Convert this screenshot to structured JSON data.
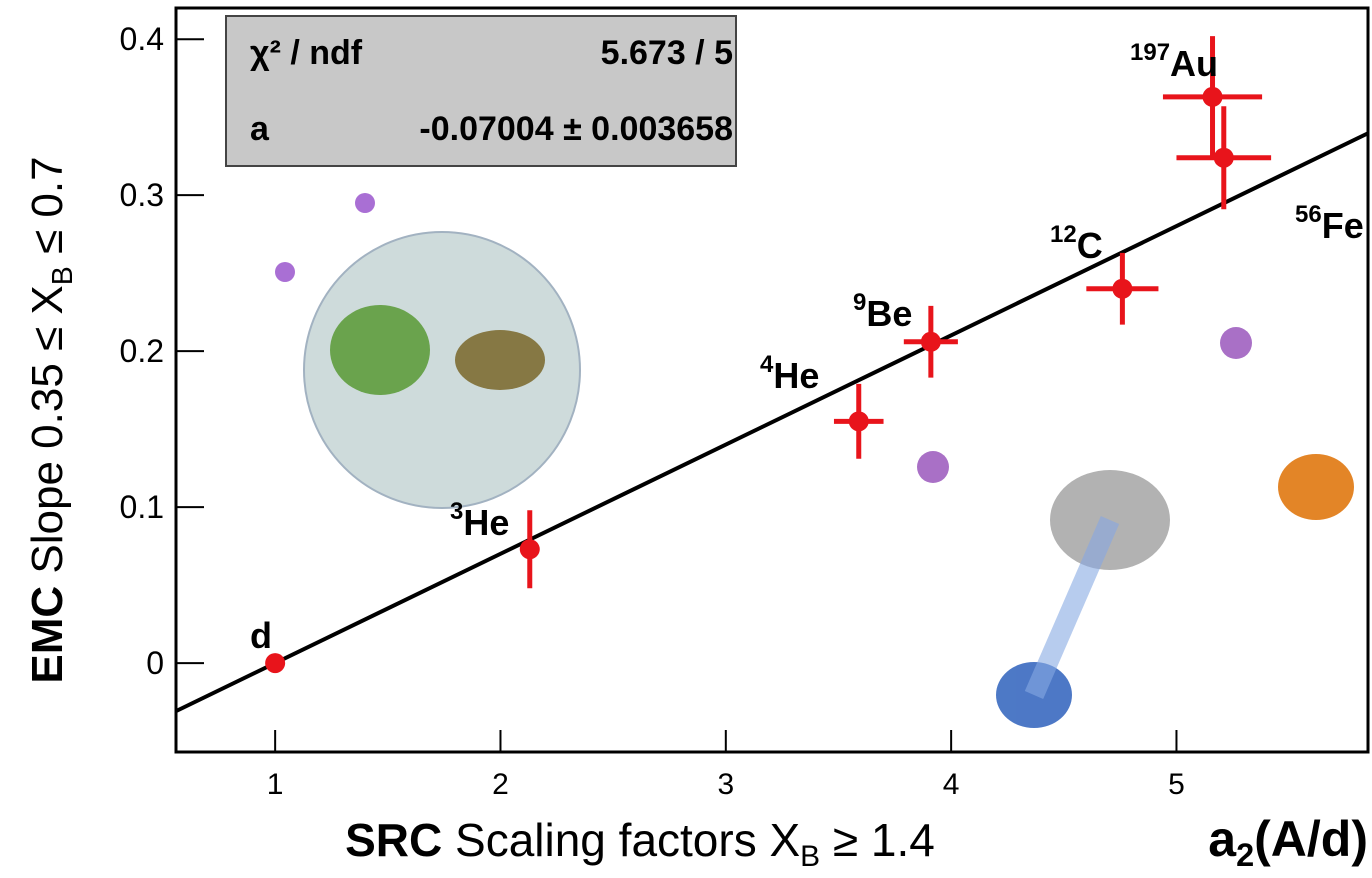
{
  "chart_data": {
    "type": "scatter",
    "xlim": [
      0.56,
      5.85
    ],
    "ylim": [
      -0.057,
      0.42
    ],
    "xticks": [
      1,
      2,
      3,
      4,
      5
    ],
    "yticks": [
      0,
      0.1,
      0.2,
      0.3,
      0.4
    ],
    "x_label": {
      "bold": "SRC",
      "text": " Scaling factors X",
      "sub": "B",
      "tail": " ≥ 1.4"
    },
    "x_label2": {
      "text": "a",
      "sub": "2",
      "tail": "(A/d)"
    },
    "y_label": {
      "bold": "EMC",
      "text": " Slope   0.35 ≤ X",
      "sub": "B",
      "tail": " ≤ 0.7"
    },
    "fit_box": {
      "rows": [
        [
          "χ² / ndf",
          "5.673 / 5"
        ],
        [
          "a",
          "-0.07004 ± 0.003658"
        ]
      ]
    },
    "fit_line": {
      "color": "#000000",
      "x": [
        0.56,
        5.85
      ],
      "y": [
        -0.0308,
        0.3397
      ]
    },
    "series": [
      {
        "color": "#e8141b",
        "labels": [
          {
            "symbol": "d"
          },
          {
            "mass": "3",
            "symbol": "He"
          },
          {
            "mass": "4",
            "symbol": "He"
          },
          {
            "mass": "9",
            "symbol": "Be"
          },
          {
            "mass": "12",
            "symbol": "C"
          },
          {
            "mass": "56",
            "symbol": "Fe"
          },
          {
            "mass": "197",
            "symbol": "Au"
          }
        ],
        "x": [
          1.0,
          2.13,
          3.59,
          3.91,
          4.76,
          5.21,
          5.16
        ],
        "values": [
          0,
          0.073,
          0.155,
          0.206,
          0.24,
          0.324,
          0.363
        ],
        "xerr": [
          0,
          0,
          0.11,
          0.12,
          0.16,
          0.21,
          0.22
        ],
        "yerr": [
          0,
          0.025,
          0.024,
          0.023,
          0.023,
          0.033,
          0.039
        ]
      }
    ]
  }
}
